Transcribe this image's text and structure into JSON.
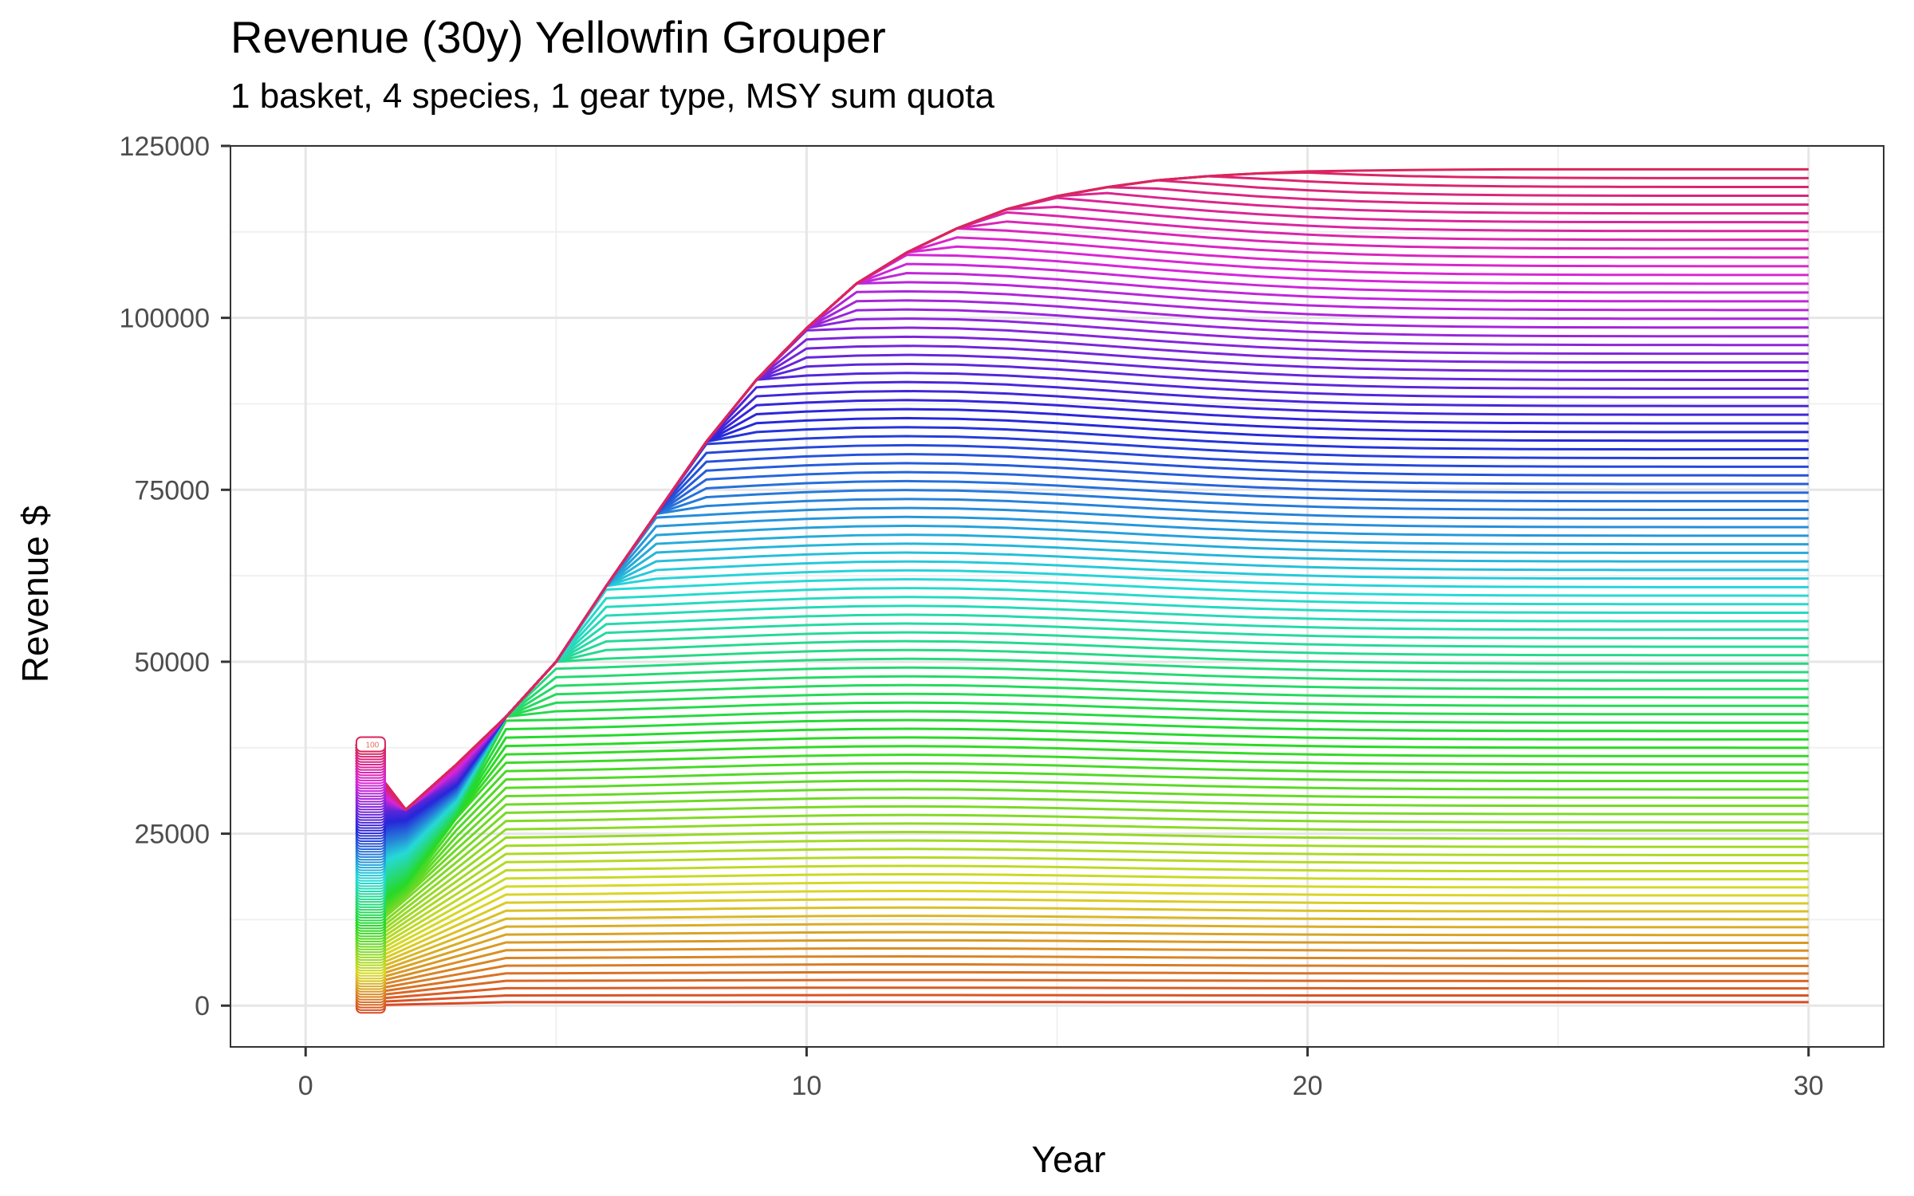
{
  "chart_data": {
    "type": "line",
    "title": "Revenue (30y) Yellowfin Grouper",
    "subtitle": "1 basket, 4 species, 1 gear type, MSY sum quota",
    "xlabel": "Year",
    "ylabel": "Revenue $",
    "xlim": [
      -1.5,
      31.5
    ],
    "ylim": [
      -6000,
      125000
    ],
    "xticks": [
      "0",
      "10",
      "20",
      "30"
    ],
    "xtick_values": [
      0,
      10,
      20,
      30
    ],
    "yticks": [
      "0",
      "25000",
      "50000",
      "75000",
      "100000",
      "125000"
    ],
    "ytick_values": [
      0,
      25000,
      50000,
      75000,
      100000,
      125000
    ],
    "grid": true,
    "legend": "none",
    "label_visible": "100",
    "series_count": 100,
    "envelope": {
      "x": [
        1,
        2,
        3,
        4,
        5,
        6,
        7,
        8,
        9,
        10,
        11,
        12,
        13,
        14,
        15,
        16,
        17,
        18,
        19,
        20,
        22,
        24,
        26,
        28,
        30
      ],
      "y": [
        33000,
        28500,
        35000,
        42000,
        50000,
        61000,
        71500,
        82000,
        91000,
        98500,
        105000,
        109500,
        113000,
        115800,
        117700,
        119000,
        120000,
        120600,
        121000,
        121300,
        121500,
        121600,
        121600,
        121600,
        121600
      ]
    },
    "start_band": {
      "x": 1.3,
      "y_min": 0,
      "y_max": 38000
    },
    "final_values_range": [
      500,
      121600
    ],
    "palette_note": "hue gradient red-orange-olive-green-teal-blue-purple-pink"
  }
}
